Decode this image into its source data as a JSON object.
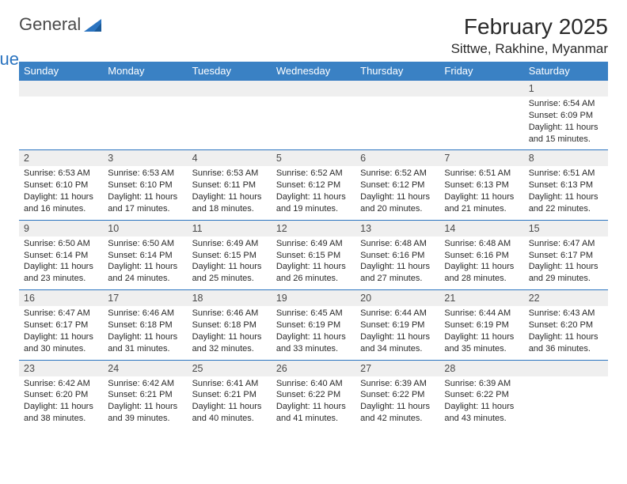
{
  "logo": {
    "general": "General",
    "blue": "Blue",
    "tri_color": "#2b74c0"
  },
  "title": "February 2025",
  "location": "Sittwe, Rakhine, Myanmar",
  "colors": {
    "header_bg": "#3a81c4",
    "header_fg": "#ffffff",
    "daynum_bg": "#efefef",
    "border": "#2b74c0",
    "text": "#2a2a2a"
  },
  "weekdays": [
    "Sunday",
    "Monday",
    "Tuesday",
    "Wednesday",
    "Thursday",
    "Friday",
    "Saturday"
  ],
  "weeks": [
    [
      null,
      null,
      null,
      null,
      null,
      null,
      {
        "n": "1",
        "sr": "Sunrise: 6:54 AM",
        "ss": "Sunset: 6:09 PM",
        "d1": "Daylight: 11 hours",
        "d2": "and 15 minutes."
      }
    ],
    [
      {
        "n": "2",
        "sr": "Sunrise: 6:53 AM",
        "ss": "Sunset: 6:10 PM",
        "d1": "Daylight: 11 hours",
        "d2": "and 16 minutes."
      },
      {
        "n": "3",
        "sr": "Sunrise: 6:53 AM",
        "ss": "Sunset: 6:10 PM",
        "d1": "Daylight: 11 hours",
        "d2": "and 17 minutes."
      },
      {
        "n": "4",
        "sr": "Sunrise: 6:53 AM",
        "ss": "Sunset: 6:11 PM",
        "d1": "Daylight: 11 hours",
        "d2": "and 18 minutes."
      },
      {
        "n": "5",
        "sr": "Sunrise: 6:52 AM",
        "ss": "Sunset: 6:12 PM",
        "d1": "Daylight: 11 hours",
        "d2": "and 19 minutes."
      },
      {
        "n": "6",
        "sr": "Sunrise: 6:52 AM",
        "ss": "Sunset: 6:12 PM",
        "d1": "Daylight: 11 hours",
        "d2": "and 20 minutes."
      },
      {
        "n": "7",
        "sr": "Sunrise: 6:51 AM",
        "ss": "Sunset: 6:13 PM",
        "d1": "Daylight: 11 hours",
        "d2": "and 21 minutes."
      },
      {
        "n": "8",
        "sr": "Sunrise: 6:51 AM",
        "ss": "Sunset: 6:13 PM",
        "d1": "Daylight: 11 hours",
        "d2": "and 22 minutes."
      }
    ],
    [
      {
        "n": "9",
        "sr": "Sunrise: 6:50 AM",
        "ss": "Sunset: 6:14 PM",
        "d1": "Daylight: 11 hours",
        "d2": "and 23 minutes."
      },
      {
        "n": "10",
        "sr": "Sunrise: 6:50 AM",
        "ss": "Sunset: 6:14 PM",
        "d1": "Daylight: 11 hours",
        "d2": "and 24 minutes."
      },
      {
        "n": "11",
        "sr": "Sunrise: 6:49 AM",
        "ss": "Sunset: 6:15 PM",
        "d1": "Daylight: 11 hours",
        "d2": "and 25 minutes."
      },
      {
        "n": "12",
        "sr": "Sunrise: 6:49 AM",
        "ss": "Sunset: 6:15 PM",
        "d1": "Daylight: 11 hours",
        "d2": "and 26 minutes."
      },
      {
        "n": "13",
        "sr": "Sunrise: 6:48 AM",
        "ss": "Sunset: 6:16 PM",
        "d1": "Daylight: 11 hours",
        "d2": "and 27 minutes."
      },
      {
        "n": "14",
        "sr": "Sunrise: 6:48 AM",
        "ss": "Sunset: 6:16 PM",
        "d1": "Daylight: 11 hours",
        "d2": "and 28 minutes."
      },
      {
        "n": "15",
        "sr": "Sunrise: 6:47 AM",
        "ss": "Sunset: 6:17 PM",
        "d1": "Daylight: 11 hours",
        "d2": "and 29 minutes."
      }
    ],
    [
      {
        "n": "16",
        "sr": "Sunrise: 6:47 AM",
        "ss": "Sunset: 6:17 PM",
        "d1": "Daylight: 11 hours",
        "d2": "and 30 minutes."
      },
      {
        "n": "17",
        "sr": "Sunrise: 6:46 AM",
        "ss": "Sunset: 6:18 PM",
        "d1": "Daylight: 11 hours",
        "d2": "and 31 minutes."
      },
      {
        "n": "18",
        "sr": "Sunrise: 6:46 AM",
        "ss": "Sunset: 6:18 PM",
        "d1": "Daylight: 11 hours",
        "d2": "and 32 minutes."
      },
      {
        "n": "19",
        "sr": "Sunrise: 6:45 AM",
        "ss": "Sunset: 6:19 PM",
        "d1": "Daylight: 11 hours",
        "d2": "and 33 minutes."
      },
      {
        "n": "20",
        "sr": "Sunrise: 6:44 AM",
        "ss": "Sunset: 6:19 PM",
        "d1": "Daylight: 11 hours",
        "d2": "and 34 minutes."
      },
      {
        "n": "21",
        "sr": "Sunrise: 6:44 AM",
        "ss": "Sunset: 6:19 PM",
        "d1": "Daylight: 11 hours",
        "d2": "and 35 minutes."
      },
      {
        "n": "22",
        "sr": "Sunrise: 6:43 AM",
        "ss": "Sunset: 6:20 PM",
        "d1": "Daylight: 11 hours",
        "d2": "and 36 minutes."
      }
    ],
    [
      {
        "n": "23",
        "sr": "Sunrise: 6:42 AM",
        "ss": "Sunset: 6:20 PM",
        "d1": "Daylight: 11 hours",
        "d2": "and 38 minutes."
      },
      {
        "n": "24",
        "sr": "Sunrise: 6:42 AM",
        "ss": "Sunset: 6:21 PM",
        "d1": "Daylight: 11 hours",
        "d2": "and 39 minutes."
      },
      {
        "n": "25",
        "sr": "Sunrise: 6:41 AM",
        "ss": "Sunset: 6:21 PM",
        "d1": "Daylight: 11 hours",
        "d2": "and 40 minutes."
      },
      {
        "n": "26",
        "sr": "Sunrise: 6:40 AM",
        "ss": "Sunset: 6:22 PM",
        "d1": "Daylight: 11 hours",
        "d2": "and 41 minutes."
      },
      {
        "n": "27",
        "sr": "Sunrise: 6:39 AM",
        "ss": "Sunset: 6:22 PM",
        "d1": "Daylight: 11 hours",
        "d2": "and 42 minutes."
      },
      {
        "n": "28",
        "sr": "Sunrise: 6:39 AM",
        "ss": "Sunset: 6:22 PM",
        "d1": "Daylight: 11 hours",
        "d2": "and 43 minutes."
      },
      null
    ]
  ]
}
